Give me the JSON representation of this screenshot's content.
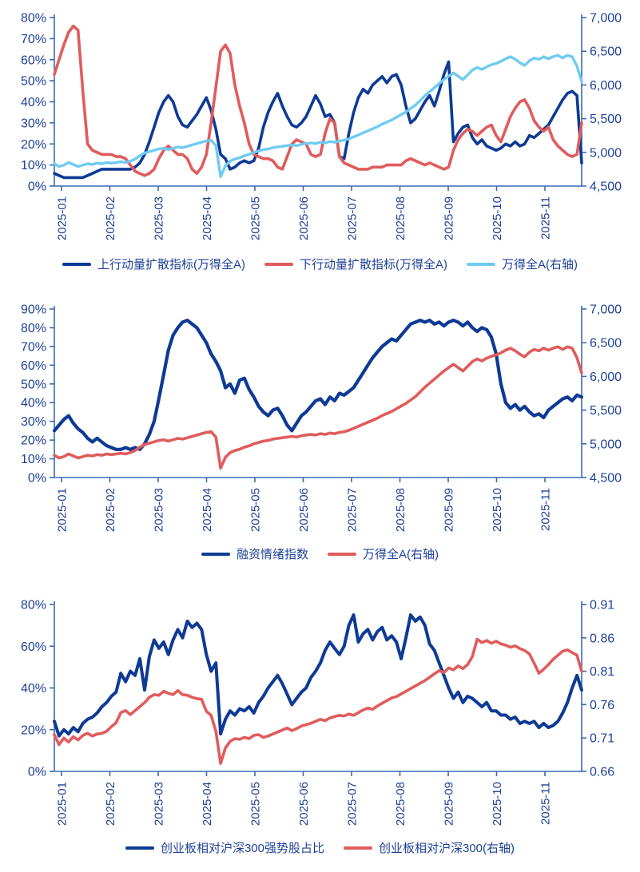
{
  "style": {
    "background": "#ffffff",
    "axis_color": "#3a6bb5",
    "label_color": "#1f4098",
    "navy": "#0d3a94",
    "red": "#e05c5c",
    "sky": "#6fcbf2"
  },
  "chart_data": [
    {
      "type": "line",
      "title": "",
      "grid": "off",
      "legend_position": "bottom-center",
      "x_ticks": [
        "2025-01",
        "2025-02",
        "2025-03",
        "2025-04",
        "2025-05",
        "2025-06",
        "2025-07",
        "2025-08",
        "2025-09",
        "2025-10",
        "2025-11"
      ],
      "left_axis": {
        "min": 0,
        "max": 80,
        "step": 10,
        "format": "percent",
        "ticks": [
          "0%",
          "10%",
          "20%",
          "30%",
          "40%",
          "50%",
          "60%",
          "70%",
          "80%"
        ]
      },
      "right_axis": {
        "min": 4500,
        "max": 7000,
        "step": 500,
        "format": "thousands",
        "ticks": [
          "4,500",
          "5,000",
          "5,500",
          "6,000",
          "6,500",
          "7,000"
        ]
      },
      "series": [
        {
          "name": "上行动量扩散指标(万得全A)",
          "axis": "left",
          "color": "#0d3a94",
          "values": [
            6,
            5,
            4,
            4,
            4,
            4,
            4,
            5,
            6,
            7,
            8,
            8,
            8,
            8,
            8,
            8,
            8,
            9,
            11,
            15,
            21,
            28,
            35,
            40,
            43,
            40,
            33,
            29,
            28,
            31,
            34,
            38,
            42,
            36,
            27,
            15,
            13,
            8,
            9,
            11,
            12,
            11,
            12,
            18,
            28,
            35,
            40,
            44,
            38,
            33,
            29,
            28,
            30,
            33,
            38,
            43,
            39,
            33,
            34,
            30,
            14,
            13,
            25,
            35,
            42,
            46,
            44,
            48,
            50,
            52,
            49,
            52,
            53,
            48,
            38,
            30,
            32,
            36,
            40,
            43,
            38,
            45,
            53,
            59,
            21,
            25,
            28,
            29,
            23,
            20,
            22,
            19,
            18,
            17,
            18,
            20,
            19,
            21,
            19,
            20,
            24,
            23,
            25,
            27,
            29,
            33,
            37,
            41,
            44,
            45,
            43,
            11
          ]
        },
        {
          "name": "下行动量扩散指标(万得全A)",
          "axis": "left",
          "color": "#e05c5c",
          "values": [
            53,
            60,
            67,
            73,
            76,
            74,
            45,
            20,
            17,
            16,
            15,
            15,
            15,
            14,
            14,
            13,
            10,
            7,
            6,
            5,
            6,
            8,
            13,
            17,
            19,
            17,
            15,
            15,
            13,
            8,
            6,
            9,
            15,
            30,
            47,
            64,
            67,
            63,
            48,
            38,
            30,
            20,
            15,
            14,
            13,
            13,
            12,
            9,
            8,
            14,
            20,
            22,
            21,
            20,
            15,
            14,
            15,
            25,
            32,
            30,
            14,
            11,
            10,
            9,
            8,
            8,
            8,
            9,
            9,
            9,
            10,
            10,
            10,
            10,
            12,
            13,
            12,
            11,
            10,
            11,
            10,
            9,
            8,
            9,
            17,
            22,
            25,
            27,
            26,
            24,
            26,
            28,
            29,
            24,
            21,
            27,
            33,
            37,
            40,
            41,
            37,
            31,
            28,
            26,
            28,
            22,
            19,
            17,
            15,
            14,
            15,
            30
          ]
        },
        {
          "name": "万得全A(右轴)",
          "axis": "right",
          "color": "#6fcbf2",
          "values": [
            4830,
            4790,
            4810,
            4850,
            4820,
            4790,
            4810,
            4830,
            4820,
            4840,
            4830,
            4850,
            4840,
            4850,
            4860,
            4850,
            4870,
            4900,
            4950,
            4990,
            5010,
            5030,
            5050,
            5060,
            5040,
            5060,
            5080,
            5070,
            5090,
            5110,
            5130,
            5150,
            5170,
            5180,
            5100,
            4640,
            4800,
            4870,
            4900,
            4920,
            4950,
            4970,
            5000,
            5020,
            5040,
            5050,
            5070,
            5080,
            5090,
            5100,
            5110,
            5100,
            5120,
            5130,
            5140,
            5130,
            5150,
            5140,
            5160,
            5150,
            5170,
            5180,
            5200,
            5230,
            5260,
            5290,
            5320,
            5350,
            5380,
            5420,
            5450,
            5480,
            5520,
            5560,
            5600,
            5650,
            5700,
            5770,
            5840,
            5900,
            5960,
            6020,
            6080,
            6130,
            6180,
            6130,
            6080,
            6150,
            6220,
            6260,
            6230,
            6270,
            6300,
            6320,
            6350,
            6390,
            6420,
            6380,
            6330,
            6290,
            6360,
            6400,
            6380,
            6420,
            6390,
            6420,
            6440,
            6400,
            6440,
            6420,
            6280,
            6050
          ]
        }
      ]
    },
    {
      "type": "line",
      "title": "",
      "grid": "off",
      "legend_position": "bottom-center",
      "x_ticks": [
        "2025-01",
        "2025-02",
        "2025-03",
        "2025-04",
        "2025-05",
        "2025-06",
        "2025-07",
        "2025-08",
        "2025-09",
        "2025-10",
        "2025-11"
      ],
      "left_axis": {
        "min": 0,
        "max": 90,
        "step": 10,
        "format": "percent",
        "ticks": [
          "0%",
          "10%",
          "20%",
          "30%",
          "40%",
          "50%",
          "60%",
          "70%",
          "80%",
          "90%"
        ]
      },
      "right_axis": {
        "min": 4500,
        "max": 7000,
        "step": 500,
        "format": "thousands",
        "ticks": [
          "4,500",
          "5,000",
          "5,500",
          "6,000",
          "6,500",
          "7,000"
        ]
      },
      "series": [
        {
          "name": "融资情绪指数",
          "axis": "left",
          "color": "#0d3a94",
          "values": [
            25,
            28,
            31,
            33,
            29,
            26,
            24,
            21,
            19,
            21,
            19,
            17,
            16,
            15,
            15,
            16,
            15,
            16,
            15,
            18,
            23,
            30,
            42,
            55,
            68,
            76,
            80,
            83,
            84,
            82,
            80,
            76,
            72,
            66,
            62,
            57,
            48,
            50,
            45,
            52,
            53,
            47,
            43,
            38,
            35,
            33,
            36,
            37,
            33,
            28,
            25,
            29,
            33,
            35,
            38,
            41,
            42,
            39,
            43,
            41,
            45,
            44,
            46,
            48,
            52,
            56,
            60,
            64,
            67,
            70,
            72,
            74,
            73,
            76,
            79,
            82,
            83,
            84,
            83,
            84,
            82,
            83,
            81,
            83,
            84,
            83,
            81,
            83,
            80,
            78,
            80,
            79,
            75,
            66,
            50,
            40,
            37,
            39,
            36,
            38,
            35,
            33,
            34,
            32,
            36,
            38,
            40,
            42,
            43,
            41,
            44,
            43
          ]
        },
        {
          "name": "万得全A(右轴)",
          "axis": "right",
          "color": "#e05c5c",
          "values": [
            4830,
            4790,
            4810,
            4850,
            4820,
            4790,
            4810,
            4830,
            4820,
            4840,
            4830,
            4850,
            4840,
            4850,
            4860,
            4850,
            4870,
            4900,
            4950,
            4990,
            5010,
            5030,
            5050,
            5060,
            5040,
            5060,
            5080,
            5070,
            5090,
            5110,
            5130,
            5150,
            5170,
            5180,
            5100,
            4640,
            4800,
            4870,
            4900,
            4920,
            4950,
            4970,
            5000,
            5020,
            5040,
            5050,
            5070,
            5080,
            5090,
            5100,
            5110,
            5100,
            5120,
            5130,
            5140,
            5130,
            5150,
            5140,
            5160,
            5150,
            5170,
            5180,
            5200,
            5230,
            5260,
            5290,
            5320,
            5350,
            5380,
            5420,
            5450,
            5480,
            5520,
            5560,
            5600,
            5650,
            5700,
            5770,
            5840,
            5900,
            5960,
            6020,
            6080,
            6130,
            6180,
            6130,
            6080,
            6150,
            6220,
            6260,
            6230,
            6270,
            6300,
            6320,
            6350,
            6390,
            6420,
            6380,
            6330,
            6290,
            6360,
            6400,
            6380,
            6420,
            6390,
            6420,
            6440,
            6400,
            6440,
            6420,
            6280,
            6050
          ]
        }
      ]
    },
    {
      "type": "line",
      "title": "",
      "grid": "off",
      "legend_position": "bottom-center",
      "x_ticks": [
        "2025-01",
        "2025-02",
        "2025-03",
        "2025-04",
        "2025-05",
        "2025-06",
        "2025-07",
        "2025-08",
        "2025-09",
        "2025-10",
        "2025-11"
      ],
      "left_axis": {
        "min": 0,
        "max": 80,
        "step": 20,
        "format": "percent",
        "ticks": [
          "0%",
          "20%",
          "40%",
          "60%",
          "80%"
        ]
      },
      "right_axis": {
        "min": 0.66,
        "max": 0.91,
        "step": 0.05,
        "format": "decimal2",
        "ticks": [
          "0.66",
          "0.71",
          "0.76",
          "0.81",
          "0.86",
          "0.91"
        ]
      },
      "series": [
        {
          "name": "创业板相对沪深300强势股占比",
          "axis": "left",
          "color": "#0d3a94",
          "values": [
            24,
            17,
            20,
            18,
            21,
            19,
            23,
            25,
            26,
            28,
            31,
            33,
            36,
            38,
            47,
            43,
            48,
            46,
            54,
            39,
            55,
            63,
            59,
            62,
            56,
            63,
            68,
            64,
            72,
            69,
            71,
            68,
            56,
            48,
            52,
            18,
            25,
            29,
            27,
            30,
            29,
            31,
            28,
            33,
            36,
            40,
            43,
            46,
            42,
            37,
            32,
            35,
            38,
            40,
            45,
            48,
            52,
            58,
            62,
            59,
            56,
            60,
            70,
            75,
            62,
            66,
            68,
            63,
            67,
            69,
            63,
            65,
            62,
            54,
            64,
            75,
            72,
            74,
            70,
            61,
            58,
            52,
            46,
            40,
            35,
            38,
            33,
            36,
            35,
            33,
            31,
            33,
            29,
            29,
            27,
            27,
            25,
            26,
            23,
            24,
            23,
            24,
            21,
            23,
            21,
            22,
            24,
            28,
            33,
            40,
            46,
            39
          ]
        },
        {
          "name": "创业板相对沪深300(右轴)",
          "axis": "right",
          "color": "#e05c5c",
          "values": [
            0.715,
            0.7,
            0.71,
            0.704,
            0.712,
            0.707,
            0.714,
            0.717,
            0.713,
            0.716,
            0.717,
            0.72,
            0.727,
            0.733,
            0.748,
            0.751,
            0.745,
            0.751,
            0.757,
            0.763,
            0.771,
            0.775,
            0.774,
            0.78,
            0.777,
            0.775,
            0.781,
            0.775,
            0.774,
            0.771,
            0.769,
            0.768,
            0.75,
            0.744,
            0.72,
            0.672,
            0.695,
            0.705,
            0.709,
            0.708,
            0.711,
            0.709,
            0.714,
            0.715,
            0.711,
            0.713,
            0.716,
            0.719,
            0.722,
            0.725,
            0.721,
            0.724,
            0.728,
            0.73,
            0.732,
            0.735,
            0.738,
            0.736,
            0.74,
            0.742,
            0.744,
            0.743,
            0.746,
            0.744,
            0.748,
            0.752,
            0.755,
            0.753,
            0.758,
            0.762,
            0.766,
            0.77,
            0.772,
            0.776,
            0.78,
            0.784,
            0.788,
            0.792,
            0.796,
            0.801,
            0.806,
            0.811,
            0.808,
            0.815,
            0.812,
            0.818,
            0.814,
            0.82,
            0.832,
            0.858,
            0.853,
            0.856,
            0.852,
            0.855,
            0.851,
            0.849,
            0.846,
            0.848,
            0.844,
            0.841,
            0.836,
            0.822,
            0.807,
            0.813,
            0.82,
            0.828,
            0.834,
            0.84,
            0.842,
            0.838,
            0.834,
            0.81
          ]
        }
      ]
    }
  ]
}
